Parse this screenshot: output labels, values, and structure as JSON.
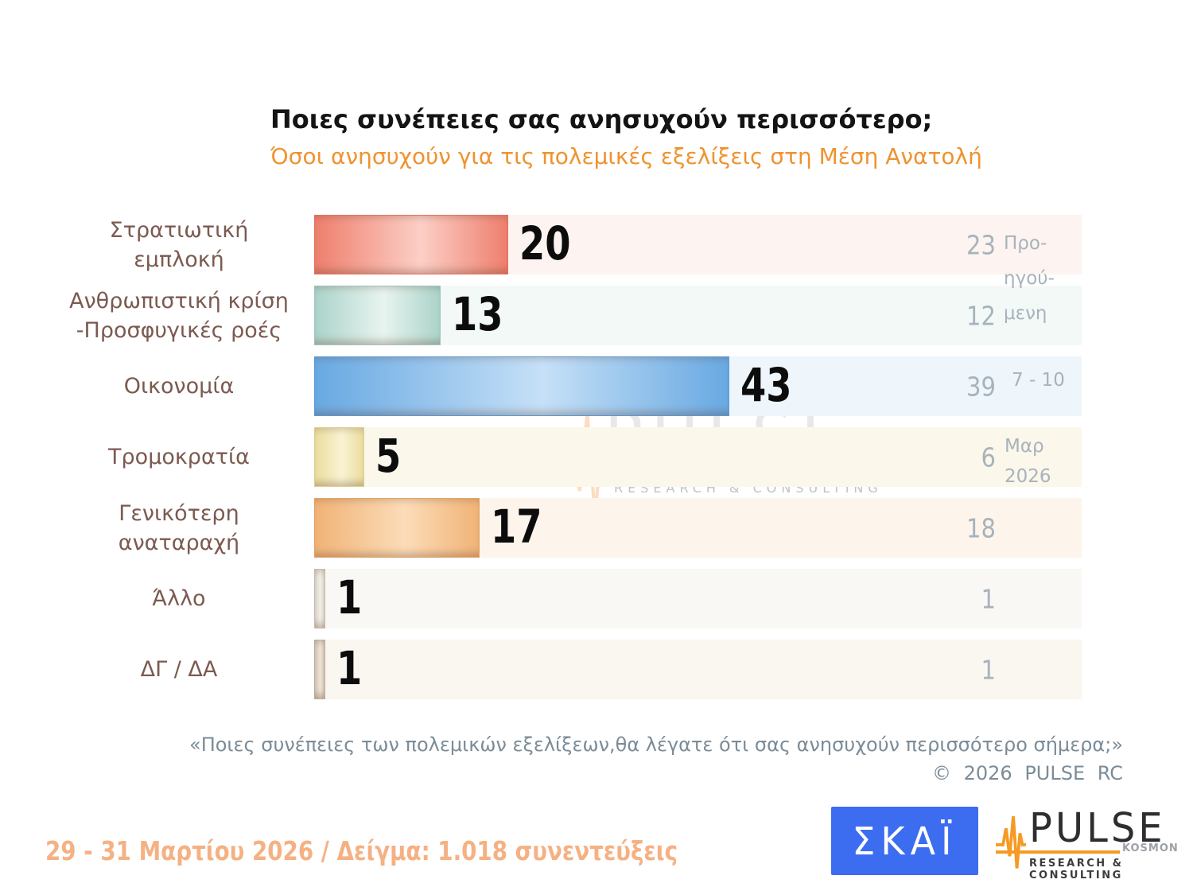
{
  "header": {
    "title": "Ποιες συνέπειες σας ανησυχούν περισσότερο;",
    "subtitle": "Όσοι ανησυχούν για τις πολεμικές εξελίξεις στη Μέση Ανατολή"
  },
  "side_labels": {
    "previous": "Προ-\nηγού-\nμενη",
    "range": "7 - 10",
    "month": "Μαρ\n2026"
  },
  "chart_data": {
    "type": "bar",
    "orientation": "horizontal",
    "title": "Ποιες συνέπειες σας ανησυχούν περισσότερο;",
    "subtitle": "Όσοι ανησυχούν για τις πολεμικές εξελίξεις στη Μέση Ανατολή",
    "categories": [
      "Στρατιωτική\nεμπλοκή",
      "Ανθρωπιστική κρίση\n-Προσφυγικές ροές",
      "Οικονομία",
      "Τρομοκρατία",
      "Γενικότερη\nαναταραχή",
      "Άλλο",
      "ΔΓ / ΔΑ"
    ],
    "series": [
      {
        "name": "29 - 31 Μαρτίου 2026",
        "values": [
          20,
          13,
          43,
          5,
          17,
          1,
          1
        ]
      },
      {
        "name": "Προηγούμενη 7 - 10 Μαρ 2026",
        "values": [
          23,
          12,
          39,
          6,
          18,
          1,
          1
        ]
      }
    ],
    "xlim": [
      0,
      80
    ],
    "legend_position": "right",
    "grid": false,
    "value_labels_shown": true,
    "bar_styles": [
      {
        "edge": "#ee7f6d",
        "mid": "#fccfc6",
        "border": "#e8705e",
        "track": "#fdf3f0"
      },
      {
        "edge": "#abd3c9",
        "mid": "#e8f4f0",
        "border": "#9cc8be",
        "track": "#f3f9f7"
      },
      {
        "edge": "#68a9e2",
        "mid": "#c6e0f7",
        "border": "#5b9bd8",
        "track": "#eef5fb"
      },
      {
        "edge": "#eadd9f",
        "mid": "#f9f3d2",
        "border": "#ddcf8e",
        "track": "#fbf7ea"
      },
      {
        "edge": "#f0b377",
        "mid": "#fcdcb8",
        "border": "#e5a464",
        "track": "#fdf5eb"
      },
      {
        "edge": "#d9d3c8",
        "mid": "#f2efe8",
        "border": "#c4bcae",
        "track": "#f9f8f5"
      },
      {
        "edge": "#d2c6b5",
        "mid": "#ece4d7",
        "border": "#bcae9a",
        "track": "#faf6f0"
      }
    ]
  },
  "watermark": {
    "brand": "PULSE",
    "sub_brand": "KOSMON",
    "tagline": "RESEARCH & CONSULTING"
  },
  "footer": {
    "question": "«Ποιες συνέπειες των πολεμικών εξελίξεων,θα λέγατε ότι σας ανησυχούν περισσότερο σήμερα;»",
    "copyright": "© 2026 PULSE RC",
    "fieldwork": "29 - 31 Μαρτίου 2026 / Δείγμα: 1.018 συνεντεύξεις"
  },
  "logos": {
    "skai": "ΣΚΑΪ",
    "pulse": {
      "brand": "PULSE",
      "sub_brand": "KOSMON",
      "tagline": "RESEARCH & CONSULTING"
    }
  },
  "colors": {
    "subtitle_orange": "#ef9330",
    "category_brown": "#7b5a50",
    "previous_gray": "#a7b3bc",
    "footnote_gray": "#7b8c98",
    "fieldwork_orange": "#f5b183",
    "skai_blue": "#3c6cf0",
    "pulse_orange": "#f59a23"
  }
}
